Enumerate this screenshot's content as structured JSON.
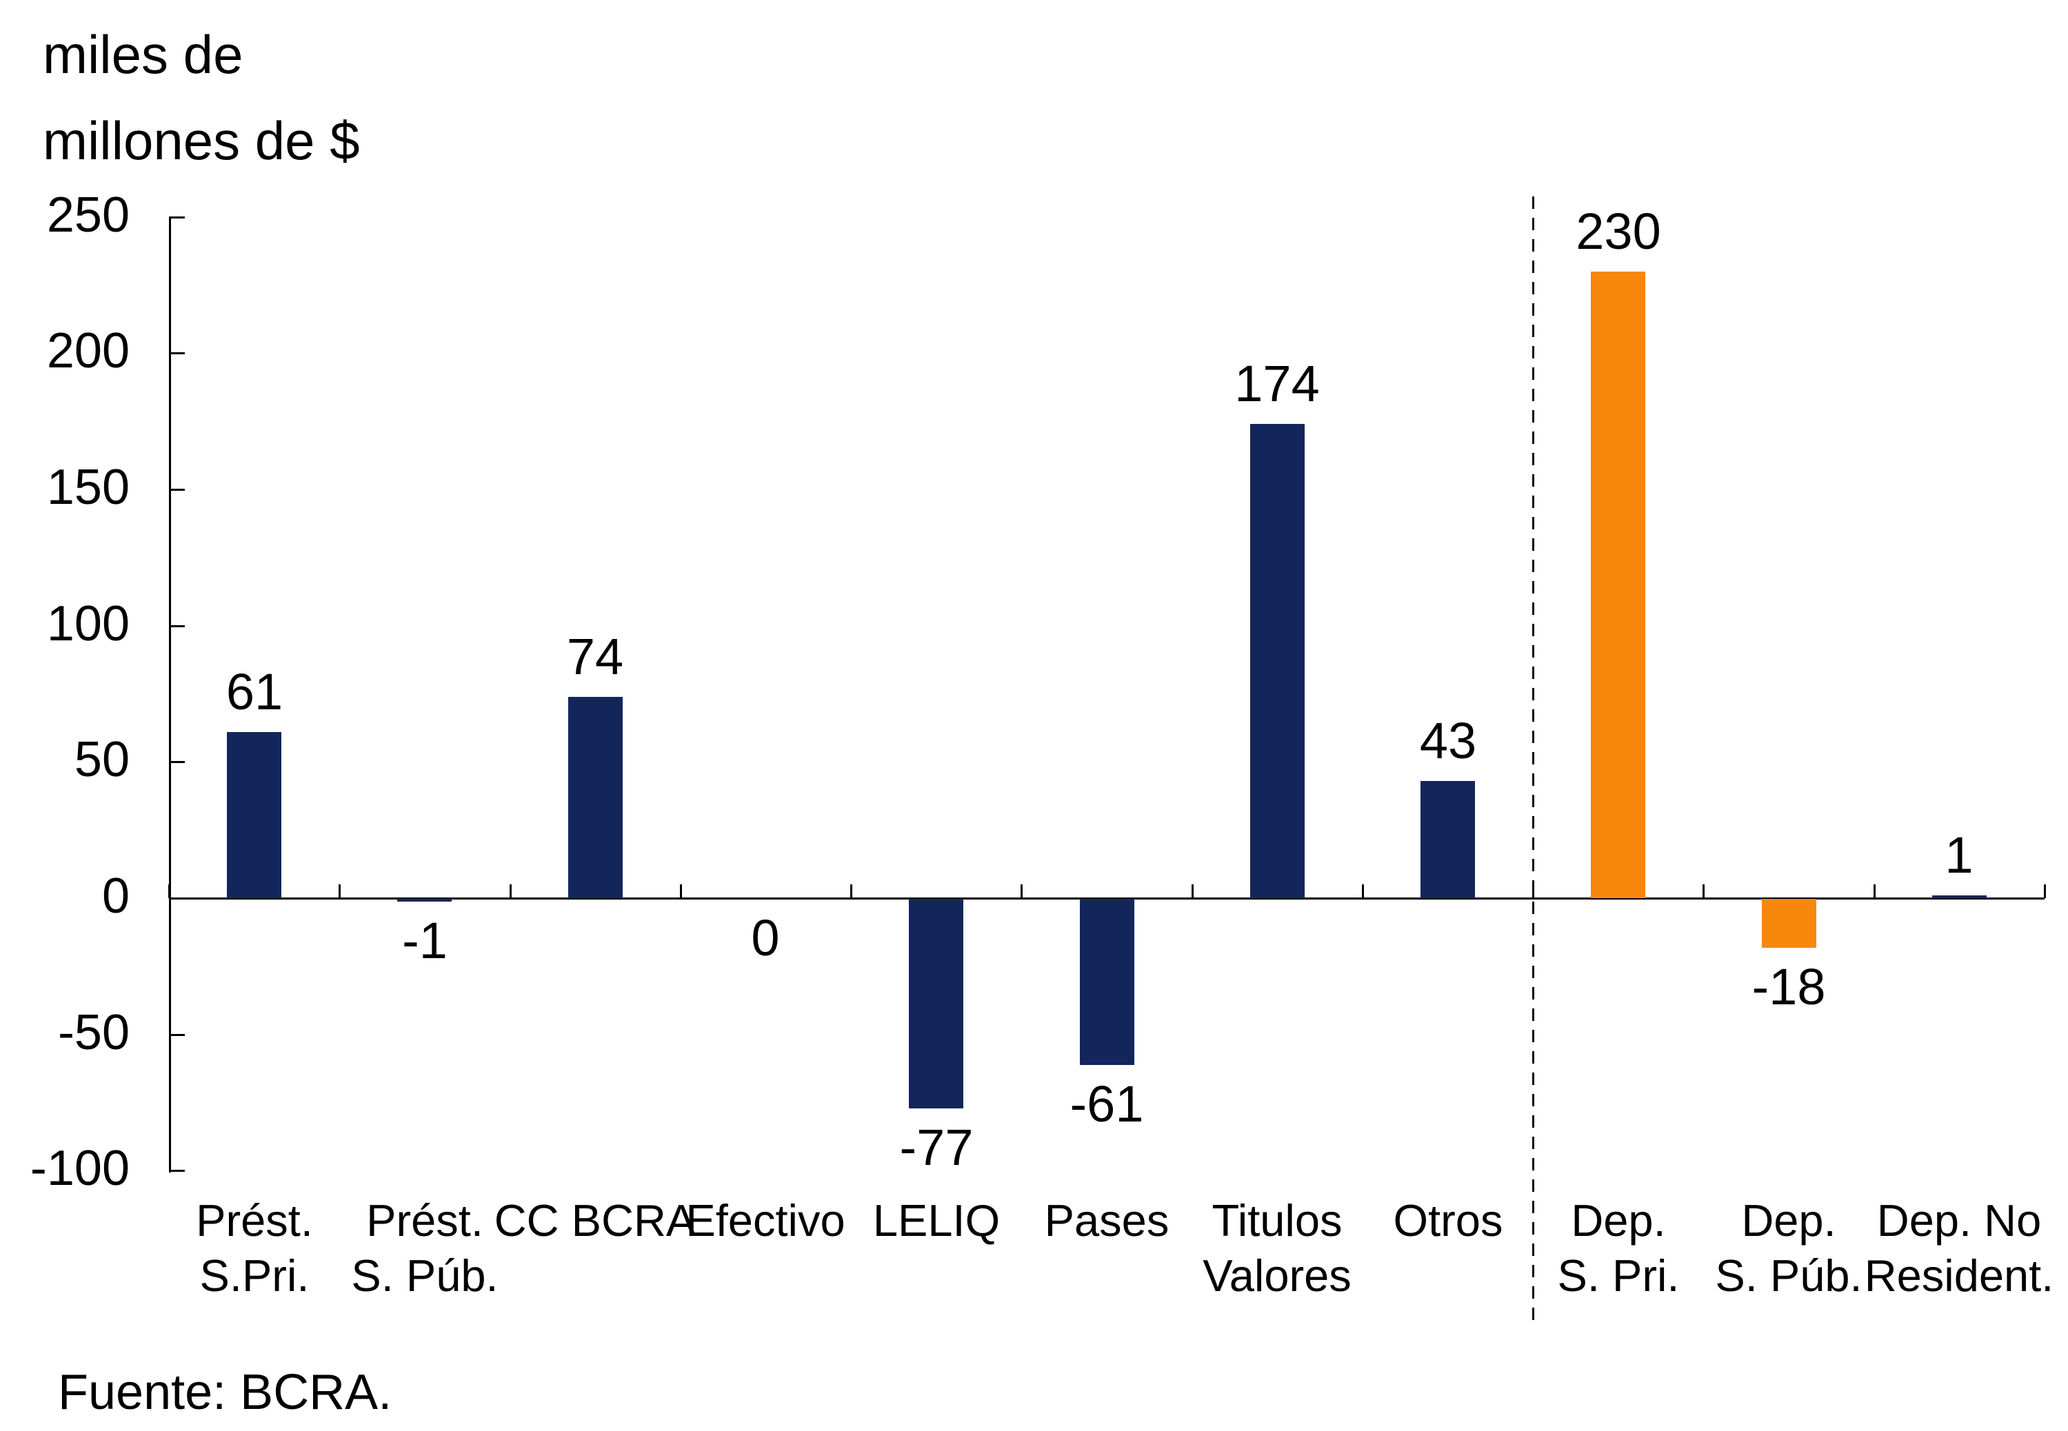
{
  "title": {
    "line1": "miles de",
    "line2": "millones de $"
  },
  "source_note": "Fuente: BCRA.",
  "colors": {
    "navy": "#13265B",
    "orange": "#F8870E",
    "axis": "#000000",
    "text": "#000000",
    "background": "#FFFFFF"
  },
  "y_axis": {
    "tick_values": [
      250,
      200,
      150,
      100,
      50,
      0,
      -50,
      -100
    ],
    "min": -100,
    "max": 250
  },
  "chart_data": {
    "type": "bar",
    "title": "miles de millones de $",
    "ylabel": "miles de millones de $",
    "xlabel": "",
    "ylim": [
      -100,
      250
    ],
    "grid": false,
    "legend": false,
    "categories": [
      "Prést. S.Pri.",
      "Prést. S. Púb.",
      "CC BCRA",
      "Efectivo",
      "LELIQ",
      "Pases",
      "Titulos Valores",
      "Otros",
      "Dep. S. Pri.",
      "Dep. S. Púb.",
      "Dep. No Resident."
    ],
    "category_label_lines": [
      [
        "Prést.",
        "S.Pri."
      ],
      [
        "Prést.",
        "S. Púb."
      ],
      [
        "CC BCRA"
      ],
      [
        "Efectivo"
      ],
      [
        "LELIQ"
      ],
      [
        "Pases"
      ],
      [
        "Titulos",
        "Valores"
      ],
      [
        "Otros"
      ],
      [
        "Dep.",
        "S. Pri."
      ],
      [
        "Dep.",
        "S. Púb."
      ],
      [
        "Dep. No",
        "Resident."
      ]
    ],
    "values": [
      61,
      -1,
      74,
      0,
      -77,
      -61,
      174,
      43,
      230,
      -18,
      1
    ],
    "data_labels": [
      "61",
      "-1",
      "74",
      "0",
      "-77",
      "-61",
      "174",
      "43",
      "230",
      "-18",
      "1"
    ],
    "bar_colors": [
      "navy",
      "navy",
      "navy",
      "navy",
      "navy",
      "navy",
      "navy",
      "navy",
      "orange",
      "orange",
      "navy"
    ],
    "separator_after_index": 7
  }
}
